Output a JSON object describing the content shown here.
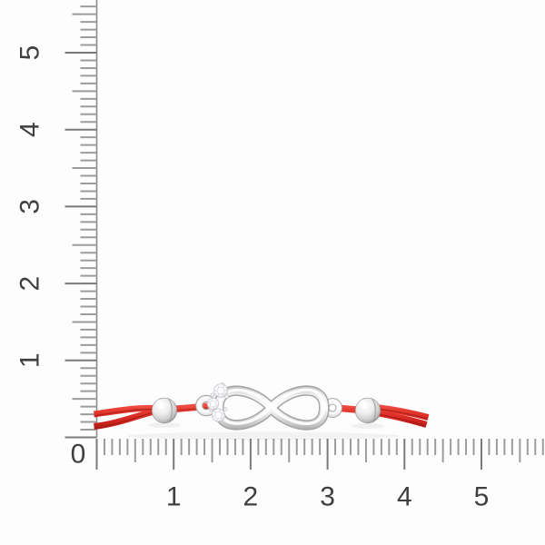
{
  "photo": {
    "subject": "Red cord bracelet with a polished silver infinity charm, a three-stone diamond cluster accent and two silver slider beads, photographed on a white background over centimeter sizing rulers",
    "background_color": "#fdfdfd"
  },
  "rulers": {
    "zero_label": "0",
    "horizontal_labels": [
      "1",
      "2",
      "3",
      "4",
      "5"
    ],
    "vertical_labels": [
      "1",
      "2",
      "3",
      "4",
      "5"
    ],
    "minor_tick_color": "#9c9c9c",
    "major_tick_color": "#7a7a7a",
    "axis_line_color": "#8b8b8b",
    "label_color": "#3f3f3f"
  },
  "bracelet": {
    "cord_color_light": "#f4655c",
    "cord_color": "#e73a31",
    "cord_color_deep": "#d0231d",
    "cord_color_dark": "#9f1a15",
    "metal_highlight": "#ffffff",
    "metal_light": "#ededed",
    "metal_mid": "#c9c9c9",
    "metal_dark": "#979797",
    "metal_edge": "#a8a8a8",
    "diamond_color": "#f7f7fa",
    "diamond_facet_color": "#cdcdd6"
  }
}
